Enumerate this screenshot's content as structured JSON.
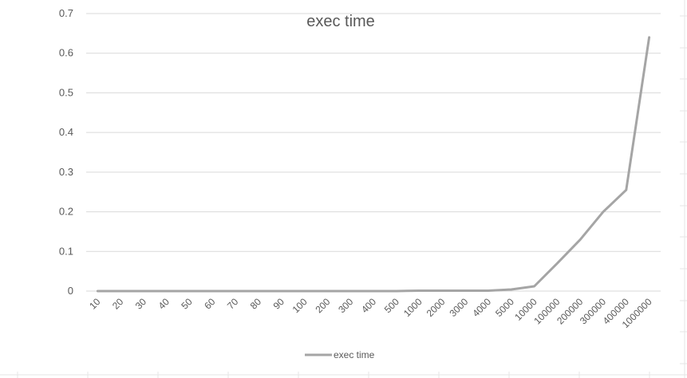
{
  "chart_data": {
    "type": "line",
    "title": "exec time",
    "xlabel": "",
    "ylabel": "",
    "categories": [
      "10",
      "20",
      "30",
      "40",
      "50",
      "60",
      "70",
      "80",
      "90",
      "100",
      "200",
      "300",
      "400",
      "500",
      "1000",
      "2000",
      "3000",
      "4000",
      "5000",
      "10000",
      "100000",
      "200000",
      "300000",
      "400000",
      "1000000"
    ],
    "series": [
      {
        "name": "exec time",
        "color": "#a5a5a5",
        "values": [
          0,
          0,
          0,
          0,
          0,
          0,
          0,
          0,
          0,
          0,
          0,
          0,
          0,
          0,
          0.001,
          0.001,
          0.001,
          0.001,
          0.004,
          0.012,
          0.07,
          0.13,
          0.2,
          0.255,
          0.64
        ]
      }
    ],
    "ylim": [
      0,
      0.7
    ],
    "yticks": [
      "0",
      "0.1",
      "0.2",
      "0.3",
      "0.4",
      "0.5",
      "0.6",
      "0.7"
    ],
    "grid": true,
    "legend_position": "bottom"
  }
}
